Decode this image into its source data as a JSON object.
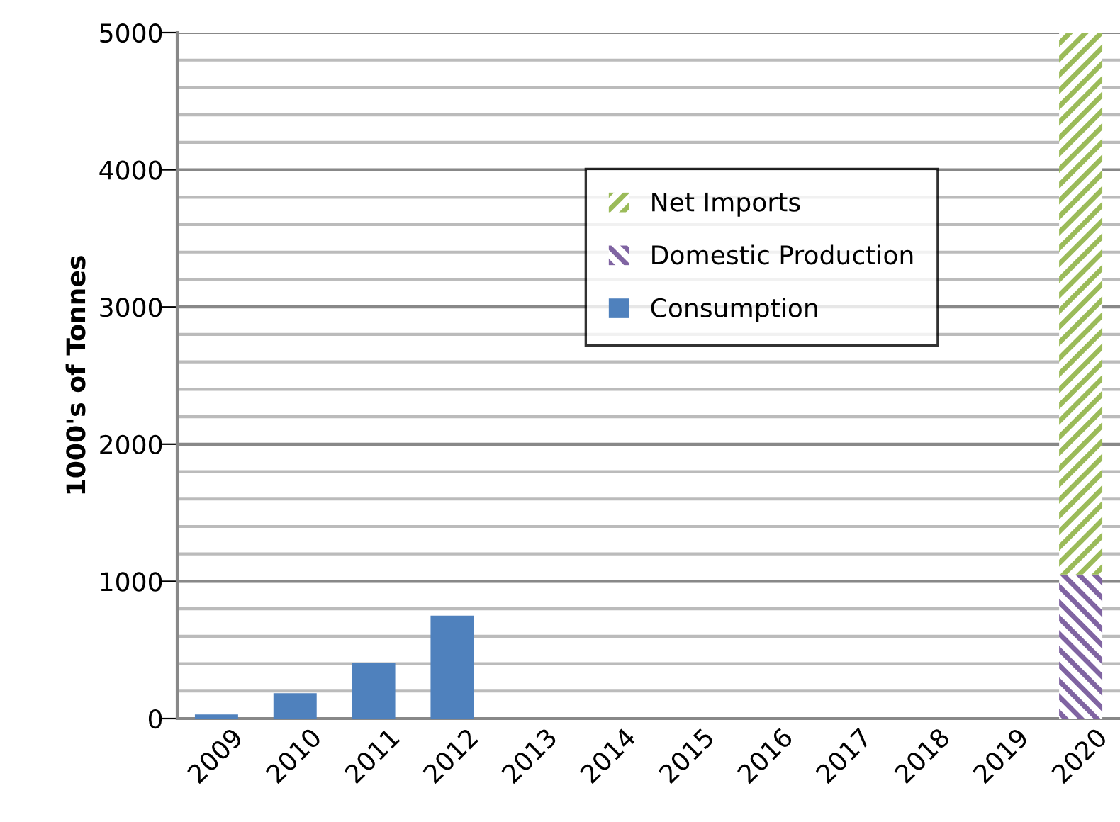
{
  "chart_data": {
    "type": "bar",
    "stacked": true,
    "ylabel": "1000's of Tonnes",
    "categories": [
      "2009",
      "2010",
      "2011",
      "2012",
      "2013",
      "2014",
      "2015",
      "2016",
      "2017",
      "2018",
      "2019",
      "2020"
    ],
    "series": [
      {
        "name": "Consumption",
        "color": "#4f81bd",
        "values": [
          30,
          185,
          405,
          750,
          null,
          null,
          null,
          null,
          null,
          null,
          null,
          null
        ]
      },
      {
        "name": "Domestic Production",
        "color": "#8064a2",
        "values": [
          null,
          null,
          null,
          null,
          null,
          null,
          null,
          null,
          null,
          null,
          null,
          1050
        ]
      },
      {
        "name": "Net Imports",
        "color": "#9bbb59",
        "values": [
          null,
          null,
          null,
          null,
          null,
          null,
          null,
          null,
          null,
          null,
          null,
          3950
        ]
      }
    ],
    "ylim": [
      0,
      5000
    ],
    "yticks": [
      0,
      {
        "value": 200,
        "label": null
      },
      {
        "value": 400,
        "label": null
      },
      {
        "value": 600,
        "label": null
      },
      {
        "value": 800,
        "label": null
      },
      1000,
      {
        "value": 1200,
        "label": null
      },
      {
        "value": 1400,
        "label": null
      },
      {
        "value": 1600,
        "label": null
      },
      {
        "value": 1800,
        "label": null
      },
      2000,
      {
        "value": 2200,
        "label": null
      },
      {
        "value": 2400,
        "label": null
      },
      {
        "value": 2600,
        "label": null
      },
      {
        "value": 2800,
        "label": null
      },
      3000,
      {
        "value": 3200,
        "label": null
      },
      {
        "value": 3400,
        "label": null
      },
      {
        "value": 3600,
        "label": null
      },
      {
        "value": 3800,
        "label": null
      },
      4000,
      {
        "value": 4200,
        "label": null
      },
      {
        "value": 4400,
        "label": null
      },
      {
        "value": 4600,
        "label": null
      },
      {
        "value": 4800,
        "label": null
      },
      5000
    ],
    "grid": "y",
    "legend": "top"
  }
}
